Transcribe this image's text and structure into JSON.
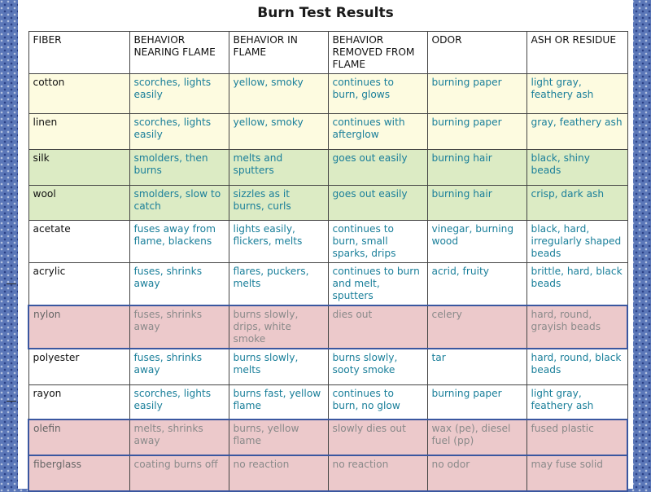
{
  "title": "Burn Test Results",
  "headers": [
    "FIBER",
    "BEHAVIOR NEARING FLAME",
    "BEHAVIOR IN FLAME",
    "BEHAVIOR REMOVED FROM FLAME",
    "ODOR",
    "ASH OR RESIDUE"
  ],
  "rows": [
    {
      "fiber": "cotton",
      "nearing": "scorches, lights easily",
      "in_flame": "yellow, smoky",
      "removed": "continues to burn, glows",
      "odor": "burning paper",
      "ash": "light gray, feathery ash"
    },
    {
      "fiber": "linen",
      "nearing": "scorches, lights easily",
      "in_flame": "yellow, smoky",
      "removed": "continues with afterglow",
      "odor": "burning paper",
      "ash": "gray, feathery ash"
    },
    {
      "fiber": "silk",
      "nearing": "smolders, then burns",
      "in_flame": "melts and sputters",
      "removed": "goes out easily",
      "odor": "burning hair",
      "ash": "black, shiny beads"
    },
    {
      "fiber": "wool",
      "nearing": "smolders, slow to catch",
      "in_flame": "sizzles as it burns, curls",
      "removed": "goes out easily",
      "odor": "burning hair",
      "ash": "crisp, dark ash"
    },
    {
      "fiber": "acetate",
      "nearing": "fuses away from flame, blackens",
      "in_flame": "lights easily, flickers, melts",
      "removed": "continues to burn, small sparks, drips",
      "odor": "vinegar, burning wood",
      "ash": "black, hard, irregularly shaped beads"
    },
    {
      "fiber": "acrylic",
      "nearing": "fuses, shrinks away",
      "in_flame": "flares, puckers, melts",
      "removed": "continues to burn and melt, sputters",
      "odor": "acrid, fruity",
      "ash": "brittle, hard, black beads"
    },
    {
      "fiber": "nylon",
      "nearing": "fuses, shrinks away",
      "in_flame": "burns slowly, drips, white smoke",
      "removed": "dies out",
      "odor": "celery",
      "ash": "hard, round, grayish beads"
    },
    {
      "fiber": "polyester",
      "nearing": "fuses, shrinks away",
      "in_flame": "burns slowly, melts",
      "removed": "burns slowly, sooty smoke",
      "odor": "tar",
      "ash": "hard, round, black beads"
    },
    {
      "fiber": "rayon",
      "nearing": "scorches, lights easily",
      "in_flame": "burns fast, yellow flame",
      "removed": "continues to burn, no glow",
      "odor": "burning paper",
      "ash": "light gray, feathery ash"
    },
    {
      "fiber": "olefin",
      "nearing": "melts, shrinks away",
      "in_flame": "burns, yellow flame",
      "removed": "slowly dies out",
      "odor": "wax (pe), diesel fuel (pp)",
      "ash": "fused plastic"
    },
    {
      "fiber": "fiberglass",
      "nearing": "coating burns off",
      "in_flame": "no reaction",
      "removed": "no reaction",
      "odor": "no odor",
      "ash": "may fuse solid"
    }
  ],
  "colors": {
    "natural_cellulose": "#fdfbe0",
    "natural_protein": "#dcebc4",
    "manufactured": "#ffffff",
    "highlighted": "#ecc9cb",
    "value_text": "#1a7f9a",
    "border_accent": "#3a57a0"
  }
}
